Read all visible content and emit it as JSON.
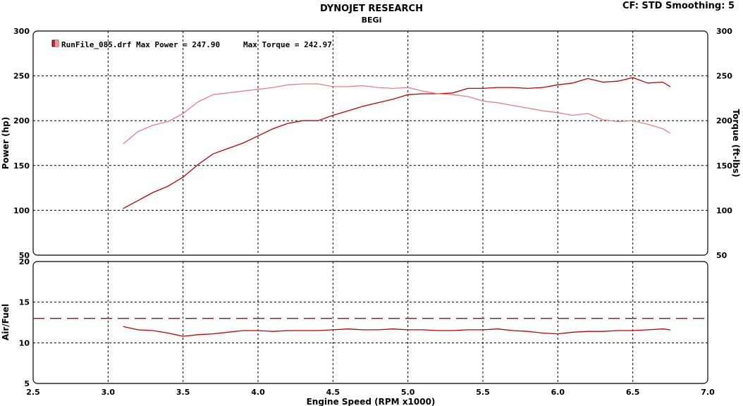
{
  "header": {
    "title": "DYNOJET RESEARCH",
    "subtitle": "BEGi",
    "cf_label": "CF: STD  Smoothing: 5"
  },
  "legend": {
    "run_label": "RunFile_085.drf Max Power = 247.90",
    "torque_label": "Max Torque = 242.97",
    "swatch_color": "#e02020"
  },
  "colors": {
    "power": "#c00000",
    "torque": "#e88080",
    "afr": "#c00000",
    "afr_target": "#c00000"
  },
  "chart_data": [
    {
      "type": "line",
      "title": "",
      "xlabel": "",
      "ylabel": "Power (hp)",
      "ylabel_right": "Torque (ft-lbs)",
      "xlim": [
        2.5,
        7.0
      ],
      "ylim": [
        50,
        300
      ],
      "xticks": [
        "2.5",
        "3.0",
        "3.5",
        "4.0",
        "4.5",
        "5.0",
        "5.5",
        "6.0",
        "6.5",
        "7.0"
      ],
      "yticks": [
        "50",
        "100",
        "150",
        "200",
        "250",
        "300"
      ],
      "grid": true,
      "series": [
        {
          "name": "Power",
          "x": [
            3.1,
            3.2,
            3.3,
            3.4,
            3.5,
            3.6,
            3.7,
            3.8,
            3.9,
            4.0,
            4.1,
            4.2,
            4.3,
            4.4,
            4.5,
            4.6,
            4.7,
            4.8,
            4.9,
            5.0,
            5.1,
            5.2,
            5.3,
            5.4,
            5.5,
            5.6,
            5.7,
            5.8,
            5.9,
            6.0,
            6.1,
            6.2,
            6.3,
            6.4,
            6.5,
            6.6,
            6.7,
            6.75
          ],
          "y": [
            102,
            111,
            120,
            127,
            137,
            151,
            163,
            169,
            175,
            183,
            191,
            197,
            200,
            200,
            206,
            211,
            216,
            220,
            224,
            229,
            230,
            230,
            231,
            236,
            236,
            237,
            237,
            236,
            237,
            240,
            242,
            247,
            243,
            244,
            248,
            242,
            243,
            238
          ]
        },
        {
          "name": "Torque",
          "x": [
            3.1,
            3.2,
            3.3,
            3.4,
            3.5,
            3.6,
            3.7,
            3.8,
            3.9,
            4.0,
            4.1,
            4.2,
            4.3,
            4.4,
            4.5,
            4.6,
            4.7,
            4.8,
            4.9,
            5.0,
            5.1,
            5.2,
            5.3,
            5.4,
            5.5,
            5.6,
            5.7,
            5.8,
            5.9,
            6.0,
            6.1,
            6.2,
            6.3,
            6.4,
            6.5,
            6.6,
            6.7,
            6.75
          ],
          "y": [
            174,
            188,
            195,
            199,
            208,
            221,
            229,
            231,
            233,
            235,
            237,
            240,
            241,
            241,
            238,
            238,
            239,
            237,
            236,
            237,
            233,
            230,
            229,
            227,
            222,
            220,
            217,
            214,
            211,
            209,
            206,
            208,
            201,
            199,
            200,
            196,
            191,
            186
          ]
        }
      ]
    },
    {
      "type": "line",
      "title": "",
      "xlabel": "Engine Speed (RPM x1000)",
      "ylabel": "Air/Fuel",
      "xlim": [
        2.5,
        7.0
      ],
      "ylim": [
        5,
        20
      ],
      "xticks": [
        "2.5",
        "3.0",
        "3.5",
        "4.0",
        "4.5",
        "5.0",
        "5.5",
        "6.0",
        "6.5",
        "7.0"
      ],
      "yticks": [
        "5",
        "10",
        "15",
        "20"
      ],
      "grid": true,
      "series": [
        {
          "name": "Air/Fuel",
          "x": [
            3.1,
            3.2,
            3.3,
            3.4,
            3.5,
            3.6,
            3.7,
            3.8,
            3.9,
            4.0,
            4.1,
            4.2,
            4.3,
            4.4,
            4.5,
            4.6,
            4.7,
            4.8,
            4.9,
            5.0,
            5.1,
            5.2,
            5.3,
            5.4,
            5.5,
            5.6,
            5.7,
            5.8,
            5.9,
            6.0,
            6.1,
            6.2,
            6.3,
            6.4,
            6.5,
            6.6,
            6.7,
            6.75
          ],
          "y": [
            12.0,
            11.6,
            11.5,
            11.2,
            10.8,
            11.0,
            11.1,
            11.3,
            11.5,
            11.5,
            11.4,
            11.5,
            11.5,
            11.5,
            11.6,
            11.7,
            11.6,
            11.6,
            11.7,
            11.6,
            11.6,
            11.5,
            11.5,
            11.6,
            11.6,
            11.7,
            11.5,
            11.4,
            11.2,
            11.1,
            11.3,
            11.4,
            11.4,
            11.5,
            11.5,
            11.6,
            11.7,
            11.6
          ]
        },
        {
          "name": "Target",
          "x": [
            2.5,
            7.0
          ],
          "y": [
            13.0,
            13.0
          ]
        }
      ]
    }
  ]
}
